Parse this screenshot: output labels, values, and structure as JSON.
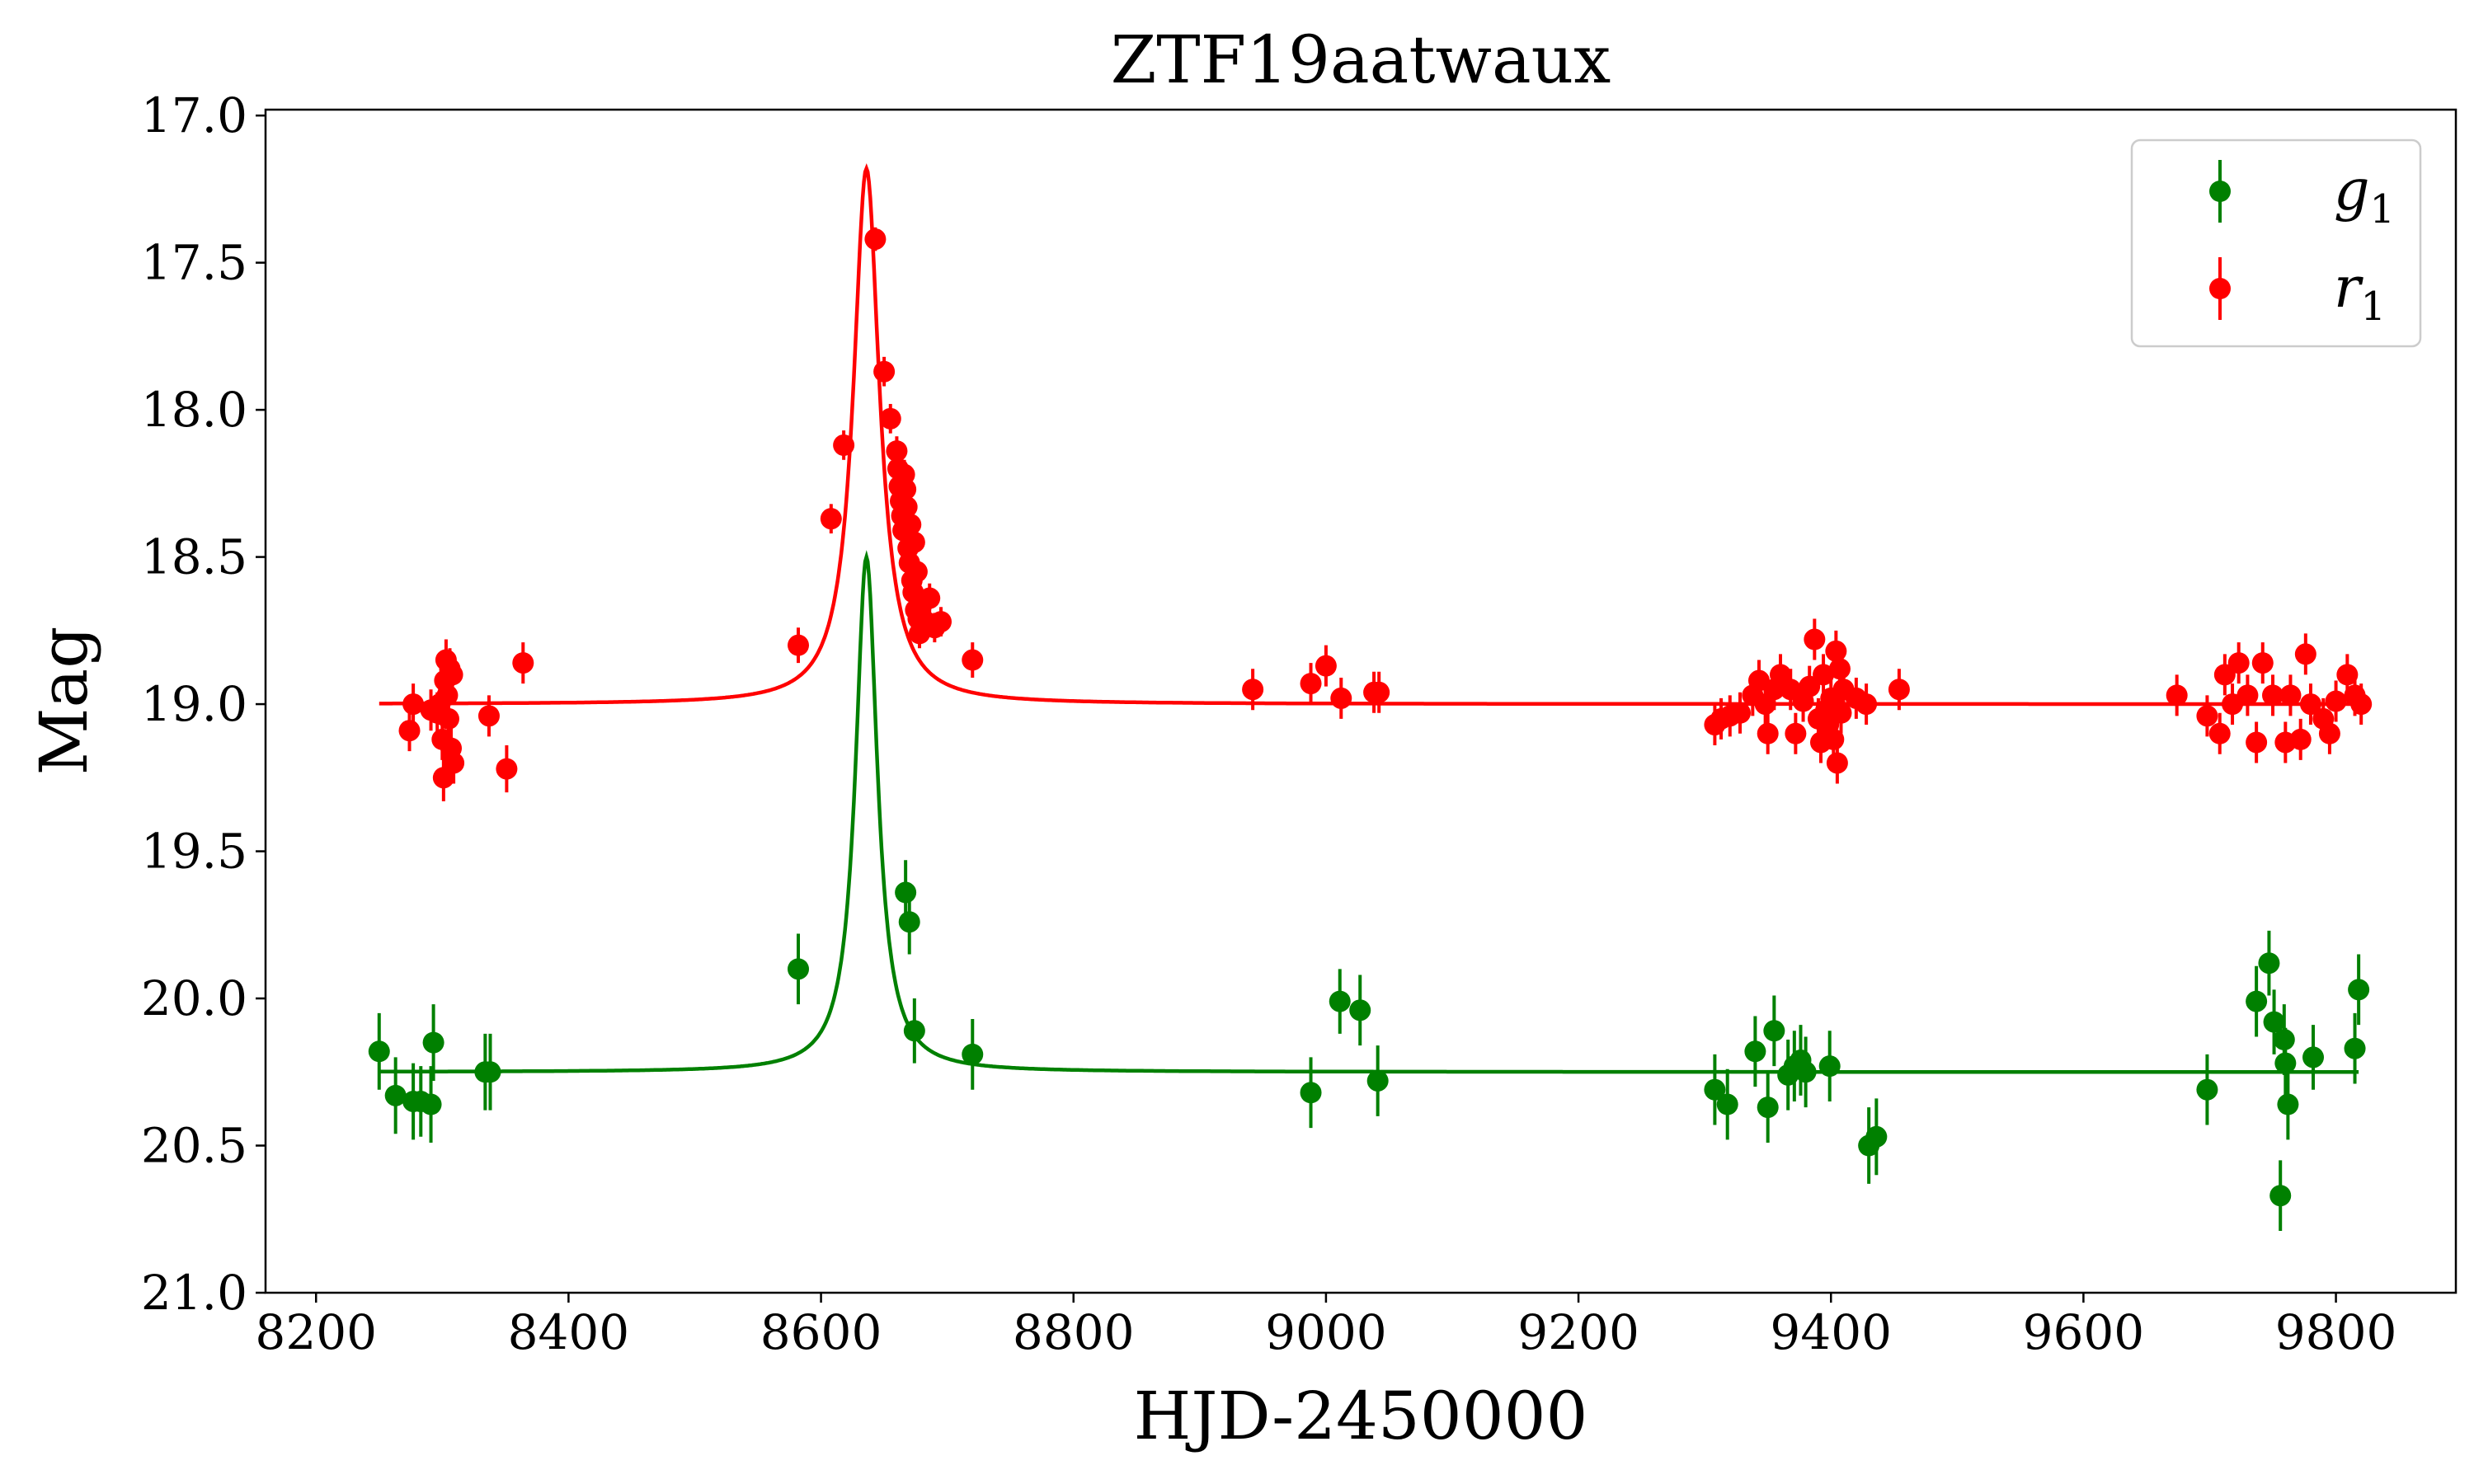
{
  "chart_data": {
    "type": "scatter",
    "title": "ZTF19aatwaux",
    "xlabel": "HJD-2450000",
    "ylabel": "Mag",
    "xlim": [
      8160,
      9895
    ],
    "ylim": [
      21.0,
      16.98
    ],
    "y_inverted": true,
    "xticks": [
      8200,
      8400,
      8600,
      8800,
      9000,
      9200,
      9400,
      9600,
      9800
    ],
    "yticks": [
      17.0,
      17.5,
      18.0,
      18.5,
      19.0,
      19.5,
      20.0,
      20.5,
      21.0
    ],
    "xtick_labels": [
      "8200",
      "8400",
      "8600",
      "8800",
      "9000",
      "9200",
      "9400",
      "9600",
      "9800"
    ],
    "ytick_labels": [
      "17.0",
      "17.5",
      "18.0",
      "18.5",
      "19.0",
      "19.5",
      "20.0",
      "20.5",
      "21.0"
    ],
    "legend_position": "top-right",
    "series": [
      {
        "name": "g1",
        "label_base": "g",
        "label_sub": "1",
        "color": "#008000",
        "model": {
          "baseline": 20.25,
          "peak": 18.5,
          "t0": 8636,
          "width": 10.5,
          "range": [
            8250,
            9818
          ]
        },
        "points": [
          [
            8250,
            20.18,
            0.13
          ],
          [
            8263,
            20.33,
            0.13
          ],
          [
            8277,
            20.35,
            0.13
          ],
          [
            8283,
            20.35,
            0.12
          ],
          [
            8291,
            20.36,
            0.13
          ],
          [
            8293,
            20.15,
            0.13
          ],
          [
            8334,
            20.25,
            0.13
          ],
          [
            8338,
            20.25,
            0.13
          ],
          [
            8582,
            19.9,
            0.12
          ],
          [
            8667,
            19.64,
            0.11
          ],
          [
            8670,
            19.74,
            0.11
          ],
          [
            8674,
            20.11,
            0.11
          ],
          [
            8720,
            20.19,
            0.12
          ],
          [
            8988,
            20.32,
            0.12
          ],
          [
            9011,
            20.01,
            0.11
          ],
          [
            9027,
            20.04,
            0.12
          ],
          [
            9041,
            20.28,
            0.12
          ],
          [
            9308,
            20.31,
            0.12
          ],
          [
            9318,
            20.36,
            0.12
          ],
          [
            9340,
            20.18,
            0.12
          ],
          [
            9350,
            20.37,
            0.12
          ],
          [
            9355,
            20.11,
            0.12
          ],
          [
            9366,
            20.26,
            0.12
          ],
          [
            9371,
            20.23,
            0.12
          ],
          [
            9376,
            20.21,
            0.12
          ],
          [
            9380,
            20.25,
            0.12
          ],
          [
            9399,
            20.23,
            0.12
          ],
          [
            9430,
            20.5,
            0.13
          ],
          [
            9436,
            20.47,
            0.13
          ],
          [
            9698,
            20.31,
            0.12
          ],
          [
            9737,
            20.01,
            0.12
          ],
          [
            9747,
            19.88,
            0.11
          ],
          [
            9751,
            20.08,
            0.11
          ],
          [
            9756,
            20.67,
            0.12
          ],
          [
            9759,
            20.14,
            0.12
          ],
          [
            9760,
            20.22,
            0.12
          ],
          [
            9762,
            20.36,
            0.12
          ],
          [
            9782,
            20.2,
            0.11
          ],
          [
            9815,
            20.17,
            0.12
          ],
          [
            9818,
            19.97,
            0.12
          ]
        ]
      },
      {
        "name": "r1",
        "label_base": "r",
        "label_sub": "1",
        "color": "#ff0000",
        "model": {
          "baseline": 19.0,
          "peak": 17.18,
          "t0": 8636,
          "width": 12.5,
          "range": [
            8250,
            9818
          ]
        },
        "points": [
          [
            8274,
            19.09,
            0.07
          ],
          [
            8277,
            19.0,
            0.07
          ],
          [
            8291,
            19.02,
            0.07
          ],
          [
            8296,
            19.03,
            0.07
          ],
          [
            8298,
            19.0,
            0.07
          ],
          [
            8300,
            19.12,
            0.07
          ],
          [
            8301,
            19.25,
            0.08
          ],
          [
            8302,
            18.92,
            0.07
          ],
          [
            8303,
            18.85,
            0.07
          ],
          [
            8304,
            18.97,
            0.07
          ],
          [
            8305,
            19.05,
            0.07
          ],
          [
            8306,
            18.88,
            0.07
          ],
          [
            8307,
            19.15,
            0.07
          ],
          [
            8308,
            18.9,
            0.07
          ],
          [
            8309,
            19.2,
            0.07
          ],
          [
            8337,
            19.04,
            0.07
          ],
          [
            8351,
            19.22,
            0.08
          ],
          [
            8364,
            18.86,
            0.07
          ],
          [
            8582,
            18.8,
            0.06
          ],
          [
            8608,
            18.37,
            0.05
          ],
          [
            8618,
            18.12,
            0.05
          ],
          [
            8643,
            17.42,
            0.04
          ],
          [
            8650,
            17.87,
            0.05
          ],
          [
            8655,
            18.03,
            0.05
          ],
          [
            8660,
            18.14,
            0.05
          ],
          [
            8661,
            18.2,
            0.05
          ],
          [
            8662,
            18.26,
            0.05
          ],
          [
            8663,
            18.31,
            0.05
          ],
          [
            8664,
            18.36,
            0.05
          ],
          [
            8665,
            18.41,
            0.05
          ],
          [
            8666,
            18.22,
            0.05
          ],
          [
            8667,
            18.27,
            0.05
          ],
          [
            8668,
            18.33,
            0.05
          ],
          [
            8669,
            18.47,
            0.05
          ],
          [
            8670,
            18.52,
            0.05
          ],
          [
            8671,
            18.39,
            0.05
          ],
          [
            8672,
            18.58,
            0.05
          ],
          [
            8673,
            18.62,
            0.05
          ],
          [
            8674,
            18.45,
            0.05
          ],
          [
            8675,
            18.68,
            0.05
          ],
          [
            8676,
            18.55,
            0.05
          ],
          [
            8677,
            18.71,
            0.05
          ],
          [
            8678,
            18.76,
            0.05
          ],
          [
            8680,
            18.66,
            0.05
          ],
          [
            8683,
            18.72,
            0.05
          ],
          [
            8686,
            18.64,
            0.05
          ],
          [
            8690,
            18.74,
            0.05
          ],
          [
            8695,
            18.72,
            0.05
          ],
          [
            8720,
            18.85,
            0.06
          ],
          [
            8942,
            18.95,
            0.07
          ],
          [
            8988,
            18.93,
            0.07
          ],
          [
            9000,
            18.87,
            0.07
          ],
          [
            9012,
            18.98,
            0.07
          ],
          [
            9038,
            18.96,
            0.07
          ],
          [
            9042,
            18.96,
            0.07
          ],
          [
            9308,
            19.07,
            0.07
          ],
          [
            9313,
            19.05,
            0.07
          ],
          [
            9320,
            19.04,
            0.07
          ],
          [
            9328,
            19.03,
            0.07
          ],
          [
            9338,
            18.97,
            0.07
          ],
          [
            9343,
            18.92,
            0.07
          ],
          [
            9348,
            19.0,
            0.07
          ],
          [
            9350,
            19.1,
            0.07
          ],
          [
            9355,
            18.95,
            0.07
          ],
          [
            9360,
            18.9,
            0.07
          ],
          [
            9368,
            18.95,
            0.07
          ],
          [
            9372,
            19.1,
            0.07
          ],
          [
            9378,
            18.99,
            0.07
          ],
          [
            9383,
            18.94,
            0.07
          ],
          [
            9387,
            18.78,
            0.07
          ],
          [
            9390,
            19.05,
            0.07
          ],
          [
            9392,
            19.13,
            0.07
          ],
          [
            9394,
            18.9,
            0.07
          ],
          [
            9396,
            19.02,
            0.07
          ],
          [
            9398,
            19.07,
            0.07
          ],
          [
            9400,
            18.98,
            0.07
          ],
          [
            9402,
            19.12,
            0.07
          ],
          [
            9404,
            18.82,
            0.07
          ],
          [
            9405,
            19.2,
            0.07
          ],
          [
            9407,
            18.88,
            0.07
          ],
          [
            9408,
            19.03,
            0.07
          ],
          [
            9410,
            18.95,
            0.07
          ],
          [
            9420,
            18.98,
            0.07
          ],
          [
            9428,
            19.0,
            0.07
          ],
          [
            9454,
            18.95,
            0.07
          ],
          [
            9674,
            18.97,
            0.07
          ],
          [
            9698,
            19.04,
            0.07
          ],
          [
            9708,
            19.1,
            0.07
          ],
          [
            9712,
            18.9,
            0.07
          ],
          [
            9718,
            19.0,
            0.07
          ],
          [
            9723,
            18.86,
            0.07
          ],
          [
            9730,
            18.97,
            0.07
          ],
          [
            9737,
            19.13,
            0.07
          ],
          [
            9742,
            18.86,
            0.07
          ],
          [
            9750,
            18.97,
            0.07
          ],
          [
            9760,
            19.13,
            0.07
          ],
          [
            9764,
            18.97,
            0.07
          ],
          [
            9772,
            19.12,
            0.07
          ],
          [
            9776,
            18.83,
            0.07
          ],
          [
            9780,
            19.0,
            0.07
          ],
          [
            9790,
            19.05,
            0.07
          ],
          [
            9795,
            19.1,
            0.07
          ],
          [
            9800,
            18.99,
            0.07
          ],
          [
            9809,
            18.9,
            0.07
          ],
          [
            9815,
            18.97,
            0.07
          ],
          [
            9820,
            19.0,
            0.07
          ]
        ]
      }
    ]
  }
}
